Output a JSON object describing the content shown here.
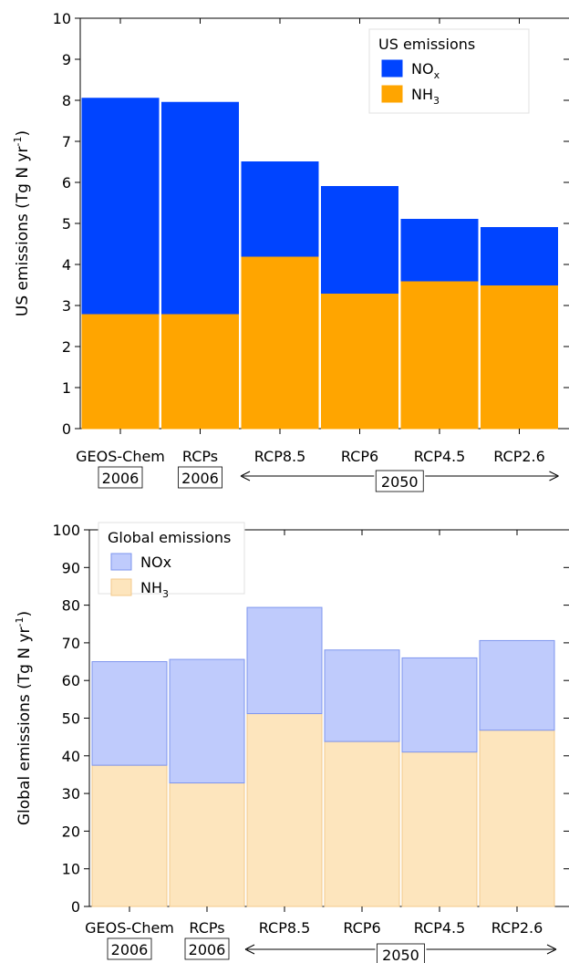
{
  "chart_data": [
    {
      "type": "bar",
      "stacked": true,
      "categories": [
        "GEOS-Chem",
        "RCPs",
        "RCP8.5",
        "RCP6",
        "RCP4.5",
        "RCP2.6"
      ],
      "category_years": [
        "2006",
        "2006",
        "",
        "",
        "",
        ""
      ],
      "group_label": "2050",
      "ylabel": "US emissions (Tg N yr",
      "ylabel_sup": "-1",
      "ylabel_end": ")",
      "ylim": [
        0,
        10
      ],
      "yticks": [
        "0",
        "1",
        "2",
        "3",
        "4",
        "5",
        "6",
        "7",
        "8",
        "9",
        "10"
      ],
      "legend_title": "US emissions",
      "legend_position": "top-right",
      "series": [
        {
          "name": "NH",
          "name_sub": "3",
          "values": [
            2.8,
            2.8,
            4.2,
            3.3,
            3.6,
            3.5
          ],
          "color": "#ffa500",
          "edge": "#ffa500"
        },
        {
          "name": "NO",
          "name_sub": "x",
          "values": [
            5.25,
            5.15,
            2.3,
            2.6,
            1.5,
            1.4
          ],
          "color": "#0044ff",
          "edge": "#0044ff"
        }
      ]
    },
    {
      "type": "bar",
      "stacked": true,
      "categories": [
        "GEOS-Chem",
        "RCPs",
        "RCP8.5",
        "RCP6",
        "RCP4.5",
        "RCP2.6"
      ],
      "category_years": [
        "2006",
        "2006",
        "",
        "",
        "",
        ""
      ],
      "group_label": "2050",
      "ylabel": "Global emissions (Tg N yr",
      "ylabel_sup": "-1",
      "ylabel_end": ")",
      "ylim": [
        0,
        100
      ],
      "yticks": [
        "0",
        "10",
        "20",
        "30",
        "40",
        "50",
        "60",
        "70",
        "80",
        "90",
        "100"
      ],
      "legend_title": "Global emissions",
      "legend_position": "top-left",
      "series": [
        {
          "name": "NH",
          "name_sub": "3",
          "values": [
            37.5,
            32.8,
            51.2,
            43.8,
            41.0,
            46.8
          ],
          "color": "#fde5bd",
          "edge": "#f3c98a"
        },
        {
          "name": "NOx",
          "name_sub": "",
          "values": [
            27.5,
            32.8,
            28.2,
            24.3,
            25.0,
            23.8
          ],
          "color": "#bfcbfc",
          "edge": "#7e95ee"
        }
      ]
    }
  ]
}
